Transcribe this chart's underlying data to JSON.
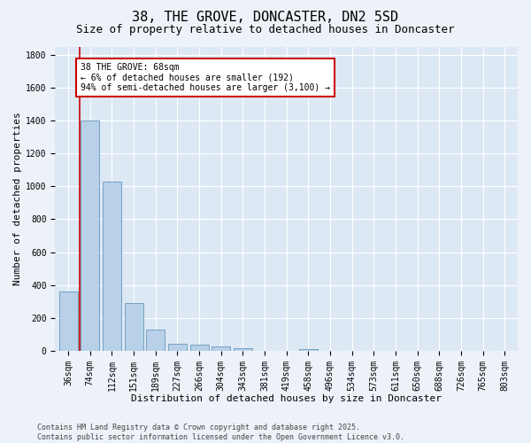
{
  "title": "38, THE GROVE, DONCASTER, DN2 5SD",
  "subtitle": "Size of property relative to detached houses in Doncaster",
  "xlabel": "Distribution of detached houses by size in Doncaster",
  "ylabel": "Number of detached properties",
  "categories": [
    "36sqm",
    "74sqm",
    "112sqm",
    "151sqm",
    "189sqm",
    "227sqm",
    "266sqm",
    "304sqm",
    "343sqm",
    "381sqm",
    "419sqm",
    "458sqm",
    "496sqm",
    "534sqm",
    "573sqm",
    "611sqm",
    "650sqm",
    "688sqm",
    "726sqm",
    "765sqm",
    "803sqm"
  ],
  "values": [
    360,
    1400,
    1030,
    290,
    130,
    45,
    38,
    25,
    15,
    0,
    0,
    12,
    0,
    0,
    0,
    0,
    0,
    0,
    0,
    0,
    0
  ],
  "bar_color": "#b8d0e8",
  "bar_edgecolor": "#6699bb",
  "vline_color": "#cc0000",
  "vline_x": 0.5,
  "annotation_text": "38 THE GROVE: 68sqm\n← 6% of detached houses are smaller (192)\n94% of semi-detached houses are larger (3,100) →",
  "annotation_box_facecolor": "#ffffff",
  "annotation_box_edgecolor": "#cc0000",
  "ylim": [
    0,
    1850
  ],
  "yticks": [
    0,
    200,
    400,
    600,
    800,
    1000,
    1200,
    1400,
    1600,
    1800
  ],
  "footnote": "Contains HM Land Registry data © Crown copyright and database right 2025.\nContains public sector information licensed under the Open Government Licence v3.0.",
  "bg_color": "#edf2f9",
  "plot_bg_color": "#dde8f5",
  "grid_color": "#ffffff",
  "title_fontsize": 11,
  "subtitle_fontsize": 9,
  "axis_label_fontsize": 8,
  "tick_fontsize": 7,
  "annot_fontsize": 7,
  "footnote_fontsize": 6
}
